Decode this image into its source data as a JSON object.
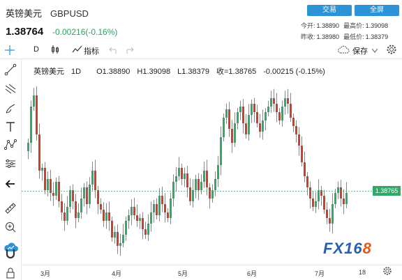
{
  "header": {
    "name": "英镑美元",
    "code": "GBPUSD",
    "trade_label": "交易",
    "fullscreen_label": "全屏",
    "price": "1.38764",
    "change": "-0.00216(-0.16%)",
    "today_open_label": "今开:",
    "today_open": "1.38890",
    "high_label": "最高价:",
    "high": "1.39098",
    "prev_close_label": "昨收:",
    "prev_close": "1.38980",
    "low_label": "最低价:",
    "low": "1.38379"
  },
  "toolbar": {
    "interval": "D",
    "indicators_label": "指标",
    "save_label": "保存"
  },
  "legend": {
    "name": "英镑美元",
    "interval": "1D",
    "open": "O1.38890",
    "high": "H1.39098",
    "low": "L1.38379",
    "close": "收=1.38765",
    "change": "-0.00215 (-0.15%)"
  },
  "current_price_label": "1.38765",
  "x_axis_labels": [
    "3月",
    "4月",
    "5月",
    "6月",
    "7月",
    "18"
  ],
  "watermark": "FX168",
  "colors": {
    "up": "#34a86a",
    "down": "#c8412a",
    "accent": "#2b93d6"
  },
  "chart_data": {
    "type": "candlestick",
    "x_ticks": [
      "3月",
      "4月",
      "5月",
      "6月",
      "7月",
      "18"
    ],
    "last_close": 1.38765,
    "closes": [
      1.405,
      1.418,
      1.422,
      1.408,
      1.395,
      1.396,
      1.388,
      1.392,
      1.387,
      1.386,
      1.391,
      1.384,
      1.38,
      1.377,
      1.382,
      1.388,
      1.384,
      1.378,
      1.38,
      1.385,
      1.389,
      1.383,
      1.39,
      1.395,
      1.388,
      1.383,
      1.381,
      1.377,
      1.38,
      1.377,
      1.371,
      1.373,
      1.368,
      1.369,
      1.372,
      1.377,
      1.379,
      1.382,
      1.379,
      1.377,
      1.378,
      1.374,
      1.372,
      1.376,
      1.38,
      1.383,
      1.379,
      1.386,
      1.383,
      1.38,
      1.378,
      1.385,
      1.391,
      1.393,
      1.396,
      1.392,
      1.394,
      1.389,
      1.384,
      1.388,
      1.392,
      1.388,
      1.391,
      1.395,
      1.389,
      1.385,
      1.388,
      1.392,
      1.397,
      1.407,
      1.414,
      1.417,
      1.41,
      1.405,
      1.412,
      1.416,
      1.418,
      1.412,
      1.408,
      1.415,
      1.419,
      1.416,
      1.412,
      1.409,
      1.413,
      1.416,
      1.418,
      1.421,
      1.419,
      1.416,
      1.413,
      1.418,
      1.421,
      1.419,
      1.414,
      1.411,
      1.408,
      1.404,
      1.398,
      1.393,
      1.389,
      1.385,
      1.382,
      1.384,
      1.388,
      1.386,
      1.381,
      1.378,
      1.376,
      1.383,
      1.387,
      1.389,
      1.385,
      1.383,
      1.387
    ]
  }
}
